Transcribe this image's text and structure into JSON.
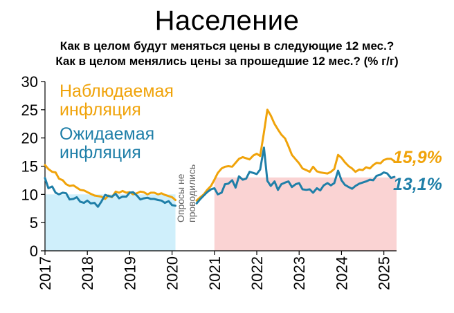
{
  "title": "Население",
  "subtitle_1": "Как в целом будут меняться цены в следующие 12 мес.?",
  "subtitle_2": "Как в целом менялись цены за прошедшие 12 мес.? (% г/г)",
  "colors": {
    "observed": "#F0A30A",
    "expected": "#1F7FA8",
    "zone_low": "#CFEFFB",
    "zone_high": "#FAD3D3",
    "gap_note": "#666666"
  },
  "chart_data": {
    "type": "line",
    "title": "Население",
    "xlabel": "",
    "ylabel": "",
    "xlim": [
      2017.0,
      2025.3
    ],
    "ylim": [
      0,
      30
    ],
    "y_ticks": [
      0,
      5,
      10,
      15,
      20,
      25,
      30
    ],
    "x_ticks": [
      2017,
      2018,
      2019,
      2020,
      2021,
      2022,
      2023,
      2024,
      2025
    ],
    "x_tick_labels": [
      "2017",
      "2018",
      "2019",
      "2020",
      "2021",
      "2022",
      "2023",
      "2024",
      "2025"
    ],
    "gap_note": "Опросы не проводились",
    "shaded_regions": [
      {
        "x0": 2017.0,
        "x1": 2020.08,
        "y0": 0,
        "y1": 10,
        "color": "zone_low"
      },
      {
        "x0": 2021.0,
        "x1": 2025.3,
        "y0": 0,
        "y1": 13,
        "color": "zone_high"
      }
    ],
    "series": [
      {
        "name": "Наблюдаемая инфляция",
        "color": "observed",
        "end_label": "15,9%",
        "segments": [
          [
            [
              2017.0,
              15.2
            ],
            [
              2017.08,
              14.5
            ],
            [
              2017.17,
              14.0
            ],
            [
              2017.25,
              13.9
            ],
            [
              2017.33,
              12.8
            ],
            [
              2017.42,
              12.5
            ],
            [
              2017.5,
              11.8
            ],
            [
              2017.58,
              11.5
            ],
            [
              2017.67,
              11.6
            ],
            [
              2017.75,
              11.2
            ],
            [
              2017.83,
              10.8
            ],
            [
              2017.92,
              10.7
            ],
            [
              2018.0,
              10.4
            ],
            [
              2018.08,
              10.1
            ],
            [
              2018.17,
              9.8
            ],
            [
              2018.25,
              9.7
            ],
            [
              2018.33,
              9.6
            ],
            [
              2018.42,
              9.2
            ],
            [
              2018.5,
              9.8
            ],
            [
              2018.58,
              9.5
            ],
            [
              2018.67,
              10.5
            ],
            [
              2018.75,
              10.3
            ],
            [
              2018.83,
              10.6
            ],
            [
              2018.92,
              10.3
            ],
            [
              2019.0,
              10.4
            ],
            [
              2019.08,
              10.0
            ],
            [
              2019.17,
              10.2
            ],
            [
              2019.25,
              10.5
            ],
            [
              2019.33,
              10.4
            ],
            [
              2019.42,
              10.0
            ],
            [
              2019.5,
              10.3
            ],
            [
              2019.58,
              10.3
            ],
            [
              2019.67,
              10.0
            ],
            [
              2019.75,
              10.2
            ],
            [
              2019.83,
              9.9
            ],
            [
              2019.92,
              9.7
            ],
            [
              2020.0,
              9.5
            ],
            [
              2020.08,
              9.0
            ]
          ],
          [
            [
              2020.58,
              8.9
            ],
            [
              2020.67,
              9.5
            ],
            [
              2020.75,
              10.0
            ],
            [
              2020.83,
              10.8
            ],
            [
              2020.92,
              11.5
            ],
            [
              2021.0,
              12.6
            ],
            [
              2021.08,
              13.8
            ],
            [
              2021.17,
              14.6
            ],
            [
              2021.25,
              14.9
            ],
            [
              2021.33,
              15.0
            ],
            [
              2021.42,
              14.9
            ],
            [
              2021.5,
              15.6
            ],
            [
              2021.58,
              16.3
            ],
            [
              2021.67,
              16.6
            ],
            [
              2021.75,
              16.4
            ],
            [
              2021.83,
              16.2
            ],
            [
              2021.92,
              16.9
            ],
            [
              2022.0,
              17.2
            ],
            [
              2022.08,
              16.8
            ],
            [
              2022.17,
              21.0
            ],
            [
              2022.25,
              25.0
            ],
            [
              2022.33,
              24.0
            ],
            [
              2022.42,
              22.5
            ],
            [
              2022.5,
              21.5
            ],
            [
              2022.58,
              20.6
            ],
            [
              2022.67,
              19.9
            ],
            [
              2022.75,
              18.5
            ],
            [
              2022.83,
              17.0
            ],
            [
              2022.92,
              16.2
            ],
            [
              2023.0,
              15.5
            ],
            [
              2023.08,
              14.6
            ],
            [
              2023.17,
              14.3
            ],
            [
              2023.25,
              14.0
            ],
            [
              2023.33,
              14.9
            ],
            [
              2023.42,
              14.1
            ],
            [
              2023.5,
              13.9
            ],
            [
              2023.58,
              13.8
            ],
            [
              2023.67,
              13.7
            ],
            [
              2023.75,
              14.0
            ],
            [
              2023.83,
              14.5
            ],
            [
              2023.92,
              17.0
            ],
            [
              2024.0,
              16.5
            ],
            [
              2024.08,
              15.7
            ],
            [
              2024.17,
              15.0
            ],
            [
              2024.25,
              14.6
            ],
            [
              2024.33,
              14.0
            ],
            [
              2024.42,
              14.4
            ],
            [
              2024.5,
              14.3
            ],
            [
              2024.58,
              14.8
            ],
            [
              2024.67,
              14.6
            ],
            [
              2024.75,
              15.2
            ],
            [
              2024.83,
              15.6
            ],
            [
              2024.92,
              15.5
            ],
            [
              2025.0,
              16.1
            ],
            [
              2025.08,
              16.3
            ],
            [
              2025.17,
              16.3
            ],
            [
              2025.25,
              15.9
            ]
          ]
        ]
      },
      {
        "name": "Ожидаемая инфляция",
        "color": "expected",
        "end_label": "13,1%",
        "segments": [
          [
            [
              2017.0,
              12.9
            ],
            [
              2017.08,
              11.1
            ],
            [
              2017.17,
              11.4
            ],
            [
              2017.25,
              10.3
            ],
            [
              2017.33,
              10.0
            ],
            [
              2017.42,
              10.3
            ],
            [
              2017.5,
              10.2
            ],
            [
              2017.58,
              9.1
            ],
            [
              2017.67,
              9.2
            ],
            [
              2017.75,
              9.5
            ],
            [
              2017.83,
              8.7
            ],
            [
              2017.92,
              8.5
            ],
            [
              2018.0,
              8.9
            ],
            [
              2018.08,
              8.4
            ],
            [
              2018.17,
              8.5
            ],
            [
              2018.25,
              7.8
            ],
            [
              2018.33,
              8.7
            ],
            [
              2018.42,
              9.9
            ],
            [
              2018.5,
              9.7
            ],
            [
              2018.58,
              9.6
            ],
            [
              2018.67,
              10.1
            ],
            [
              2018.75,
              9.3
            ],
            [
              2018.83,
              9.6
            ],
            [
              2018.92,
              9.6
            ],
            [
              2019.0,
              10.3
            ],
            [
              2019.08,
              10.4
            ],
            [
              2019.17,
              9.8
            ],
            [
              2019.25,
              9.1
            ],
            [
              2019.33,
              9.3
            ],
            [
              2019.42,
              9.4
            ],
            [
              2019.5,
              9.2
            ],
            [
              2019.58,
              9.2
            ],
            [
              2019.67,
              9.0
            ],
            [
              2019.75,
              8.9
            ],
            [
              2019.83,
              8.5
            ],
            [
              2019.92,
              8.8
            ],
            [
              2020.0,
              8.1
            ],
            [
              2020.08,
              8.0
            ]
          ],
          [
            [
              2020.58,
              8.4
            ],
            [
              2020.67,
              9.2
            ],
            [
              2020.75,
              9.8
            ],
            [
              2020.83,
              10.4
            ],
            [
              2020.92,
              10.9
            ],
            [
              2021.0,
              11.1
            ],
            [
              2021.08,
              10.0
            ],
            [
              2021.17,
              10.3
            ],
            [
              2021.25,
              11.8
            ],
            [
              2021.33,
              11.9
            ],
            [
              2021.42,
              12.5
            ],
            [
              2021.5,
              11.2
            ],
            [
              2021.58,
              13.2
            ],
            [
              2021.67,
              12.6
            ],
            [
              2021.75,
              12.8
            ],
            [
              2021.83,
              14.0
            ],
            [
              2021.92,
              13.8
            ],
            [
              2022.0,
              13.6
            ],
            [
              2022.08,
              14.4
            ],
            [
              2022.17,
              18.3
            ],
            [
              2022.25,
              12.4
            ],
            [
              2022.33,
              11.5
            ],
            [
              2022.42,
              12.3
            ],
            [
              2022.5,
              10.8
            ],
            [
              2022.58,
              11.8
            ],
            [
              2022.67,
              12.1
            ],
            [
              2022.75,
              12.3
            ],
            [
              2022.83,
              11.3
            ],
            [
              2022.92,
              11.8
            ],
            [
              2023.0,
              12.0
            ],
            [
              2023.08,
              10.9
            ],
            [
              2023.17,
              10.8
            ],
            [
              2023.25,
              10.9
            ],
            [
              2023.33,
              10.3
            ],
            [
              2023.42,
              11.1
            ],
            [
              2023.5,
              10.7
            ],
            [
              2023.58,
              11.6
            ],
            [
              2023.67,
              12.0
            ],
            [
              2023.75,
              11.6
            ],
            [
              2023.83,
              12.0
            ],
            [
              2023.92,
              14.2
            ],
            [
              2024.0,
              12.5
            ],
            [
              2024.08,
              11.7
            ],
            [
              2024.17,
              11.3
            ],
            [
              2024.25,
              11.0
            ],
            [
              2024.33,
              11.5
            ],
            [
              2024.42,
              11.9
            ],
            [
              2024.5,
              12.1
            ],
            [
              2024.58,
              12.3
            ],
            [
              2024.67,
              12.6
            ],
            [
              2024.75,
              12.5
            ],
            [
              2024.83,
              13.3
            ],
            [
              2024.92,
              13.5
            ],
            [
              2025.0,
              13.9
            ],
            [
              2025.08,
              13.7
            ],
            [
              2025.17,
              12.9
            ],
            [
              2025.25,
              13.1
            ]
          ]
        ]
      }
    ]
  }
}
